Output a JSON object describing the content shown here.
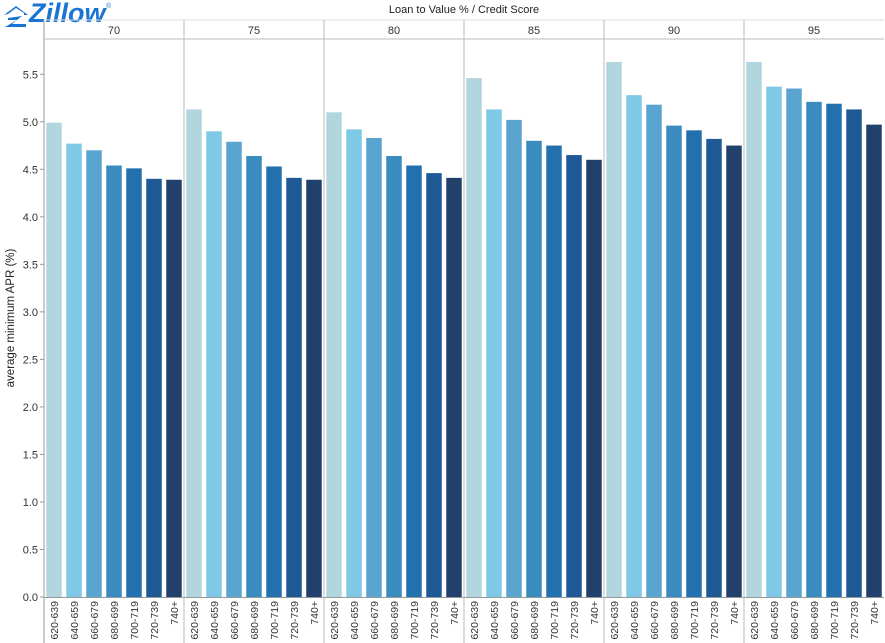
{
  "brand": {
    "logo_text": "Zillow",
    "registered_mark": "®",
    "color": "#1a74d3"
  },
  "chart_data": {
    "type": "bar",
    "title": "Loan to Value %  /  Credit Score",
    "ylabel": "average minimum APR (%)",
    "xlabel": "",
    "ylim": [
      0,
      5.85
    ],
    "yticks": [
      0.0,
      0.5,
      1.0,
      1.5,
      2.0,
      2.5,
      3.0,
      3.5,
      4.0,
      4.5,
      5.0,
      5.5
    ],
    "ytick_labels": [
      "0.0",
      "0.5",
      "1.0",
      "1.5",
      "2.0",
      "2.5",
      "3.0",
      "3.5",
      "4.0",
      "4.5",
      "5.0",
      "5.5"
    ],
    "grid": false,
    "categories": [
      "620-639",
      "640-659",
      "660-679",
      "680-699",
      "700-719",
      "720-739",
      "740+"
    ],
    "category_colors": [
      "#b2d6de",
      "#7fc8e6",
      "#5aa4d0",
      "#3a8bbe",
      "#2271ae",
      "#1f5a96",
      "#22406c"
    ],
    "panels": [
      {
        "label": "70",
        "values": [
          4.99,
          4.77,
          4.7,
          4.54,
          4.51,
          4.4,
          4.39
        ]
      },
      {
        "label": "75",
        "values": [
          5.13,
          4.9,
          4.79,
          4.64,
          4.53,
          4.41,
          4.39
        ]
      },
      {
        "label": "80",
        "values": [
          5.1,
          4.92,
          4.83,
          4.64,
          4.54,
          4.46,
          4.41
        ]
      },
      {
        "label": "85",
        "values": [
          5.46,
          5.13,
          5.02,
          4.8,
          4.75,
          4.65,
          4.6
        ]
      },
      {
        "label": "90",
        "values": [
          5.63,
          5.28,
          5.18,
          4.96,
          4.91,
          4.82,
          4.75
        ]
      },
      {
        "label": "95",
        "values": [
          5.63,
          5.37,
          5.35,
          5.21,
          5.19,
          5.13,
          4.97
        ]
      }
    ]
  }
}
